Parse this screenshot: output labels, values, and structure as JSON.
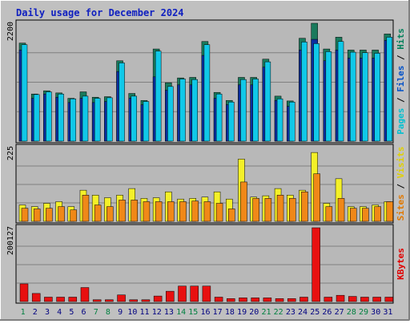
{
  "chart_data": {
    "type": "bar",
    "title": "Daily usage for December 2024",
    "categories": [
      "1",
      "2",
      "3",
      "4",
      "5",
      "6",
      "7",
      "8",
      "9",
      "10",
      "11",
      "12",
      "13",
      "14",
      "15",
      "16",
      "17",
      "18",
      "19",
      "20",
      "21",
      "22",
      "23",
      "24",
      "25",
      "26",
      "27",
      "28",
      "29",
      "30",
      "31"
    ],
    "weekend_days": [
      "1",
      "7",
      "8",
      "14",
      "15",
      "21",
      "22",
      "28",
      "29"
    ],
    "panels": [
      {
        "id": "pages-files-hits",
        "ymax_label": "2200",
        "ymax": 2200,
        "ylabel_parts": [
          {
            "text": "Pages",
            "color": "#00c0d0"
          },
          {
            "text": " / ",
            "color": "#000000"
          },
          {
            "text": "Files",
            "color": "#0050c8"
          },
          {
            "text": " / ",
            "color": "#000000"
          },
          {
            "text": "Hits",
            "color": "#00805a"
          }
        ],
        "series": [
          {
            "name": "Hits",
            "color": "#1a7a5c",
            "values": [
              1830,
              880,
              940,
              900,
              800,
              920,
              820,
              830,
              1500,
              890,
              760,
              1720,
              1090,
              1180,
              1190,
              1860,
              910,
              760,
              1190,
              1190,
              1530,
              840,
              750,
              1920,
              2200,
              1720,
              1940,
              1700,
              1700,
              1700,
              2000
            ]
          },
          {
            "name": "Files",
            "color": "#0a2fa0",
            "values": [
              1700,
              800,
              880,
              820,
              720,
              800,
              720,
              740,
              1300,
              800,
              680,
              1200,
              950,
              1050,
              1050,
              1600,
              800,
              680,
              1050,
              1050,
              1380,
              760,
              650,
              1700,
              1900,
              1500,
              1700,
              1550,
              1550,
              1550,
              1880
            ]
          },
          {
            "name": "Pages",
            "color": "#10c8e8",
            "values": [
              1800,
              870,
              920,
              880,
              790,
              840,
              800,
              810,
              1460,
              840,
              740,
              1680,
              1020,
              1160,
              1150,
              1800,
              880,
              730,
              1150,
              1160,
              1480,
              790,
              730,
              1850,
              1820,
              1670,
              1860,
              1660,
              1650,
              1640,
              1940
            ]
          }
        ]
      },
      {
        "id": "sites-visits",
        "ymax_label": "225",
        "ymax": 225,
        "ylabel_parts": [
          {
            "text": "Sites",
            "color": "#e07800"
          },
          {
            "text": " / ",
            "color": "#000000"
          },
          {
            "text": "Visits",
            "color": "#e0d000"
          }
        ],
        "series": [
          {
            "name": "Visits",
            "color": "#f4f028",
            "values": [
              50,
              45,
              55,
              60,
              45,
              95,
              80,
              72,
              80,
              100,
              70,
              72,
              90,
              68,
              70,
              74,
              90,
              68,
              190,
              74,
              78,
              100,
              80,
              95,
              210,
              55,
              130,
              45,
              45,
              50,
              60
            ]
          },
          {
            "name": "Sites",
            "color": "#f08818",
            "values": [
              40,
              38,
              40,
              45,
              35,
              80,
              50,
              45,
              65,
              65,
              60,
              60,
              60,
              60,
              62,
              60,
              55,
              38,
              120,
              70,
              70,
              80,
              70,
              90,
              145,
              45,
              70,
              40,
              40,
              45,
              60
            ]
          }
        ]
      },
      {
        "id": "kbytes",
        "ymax_label": "200127",
        "ymax": 200127,
        "ylabel_parts": [
          {
            "text": "KBytes",
            "color": "#e00000"
          }
        ],
        "series": [
          {
            "name": "KBytes",
            "color": "#e81010",
            "values": [
              48000,
              22000,
              12000,
              12000,
              12000,
              38000,
              5000,
              5000,
              18000,
              5000,
              5000,
              15000,
              28000,
              42000,
              42000,
              42000,
              12000,
              8000,
              10000,
              10000,
              10000,
              8000,
              8000,
              12000,
              200127,
              12000,
              17000,
              14000,
              12000,
              12000,
              12000
            ]
          }
        ]
      }
    ]
  }
}
